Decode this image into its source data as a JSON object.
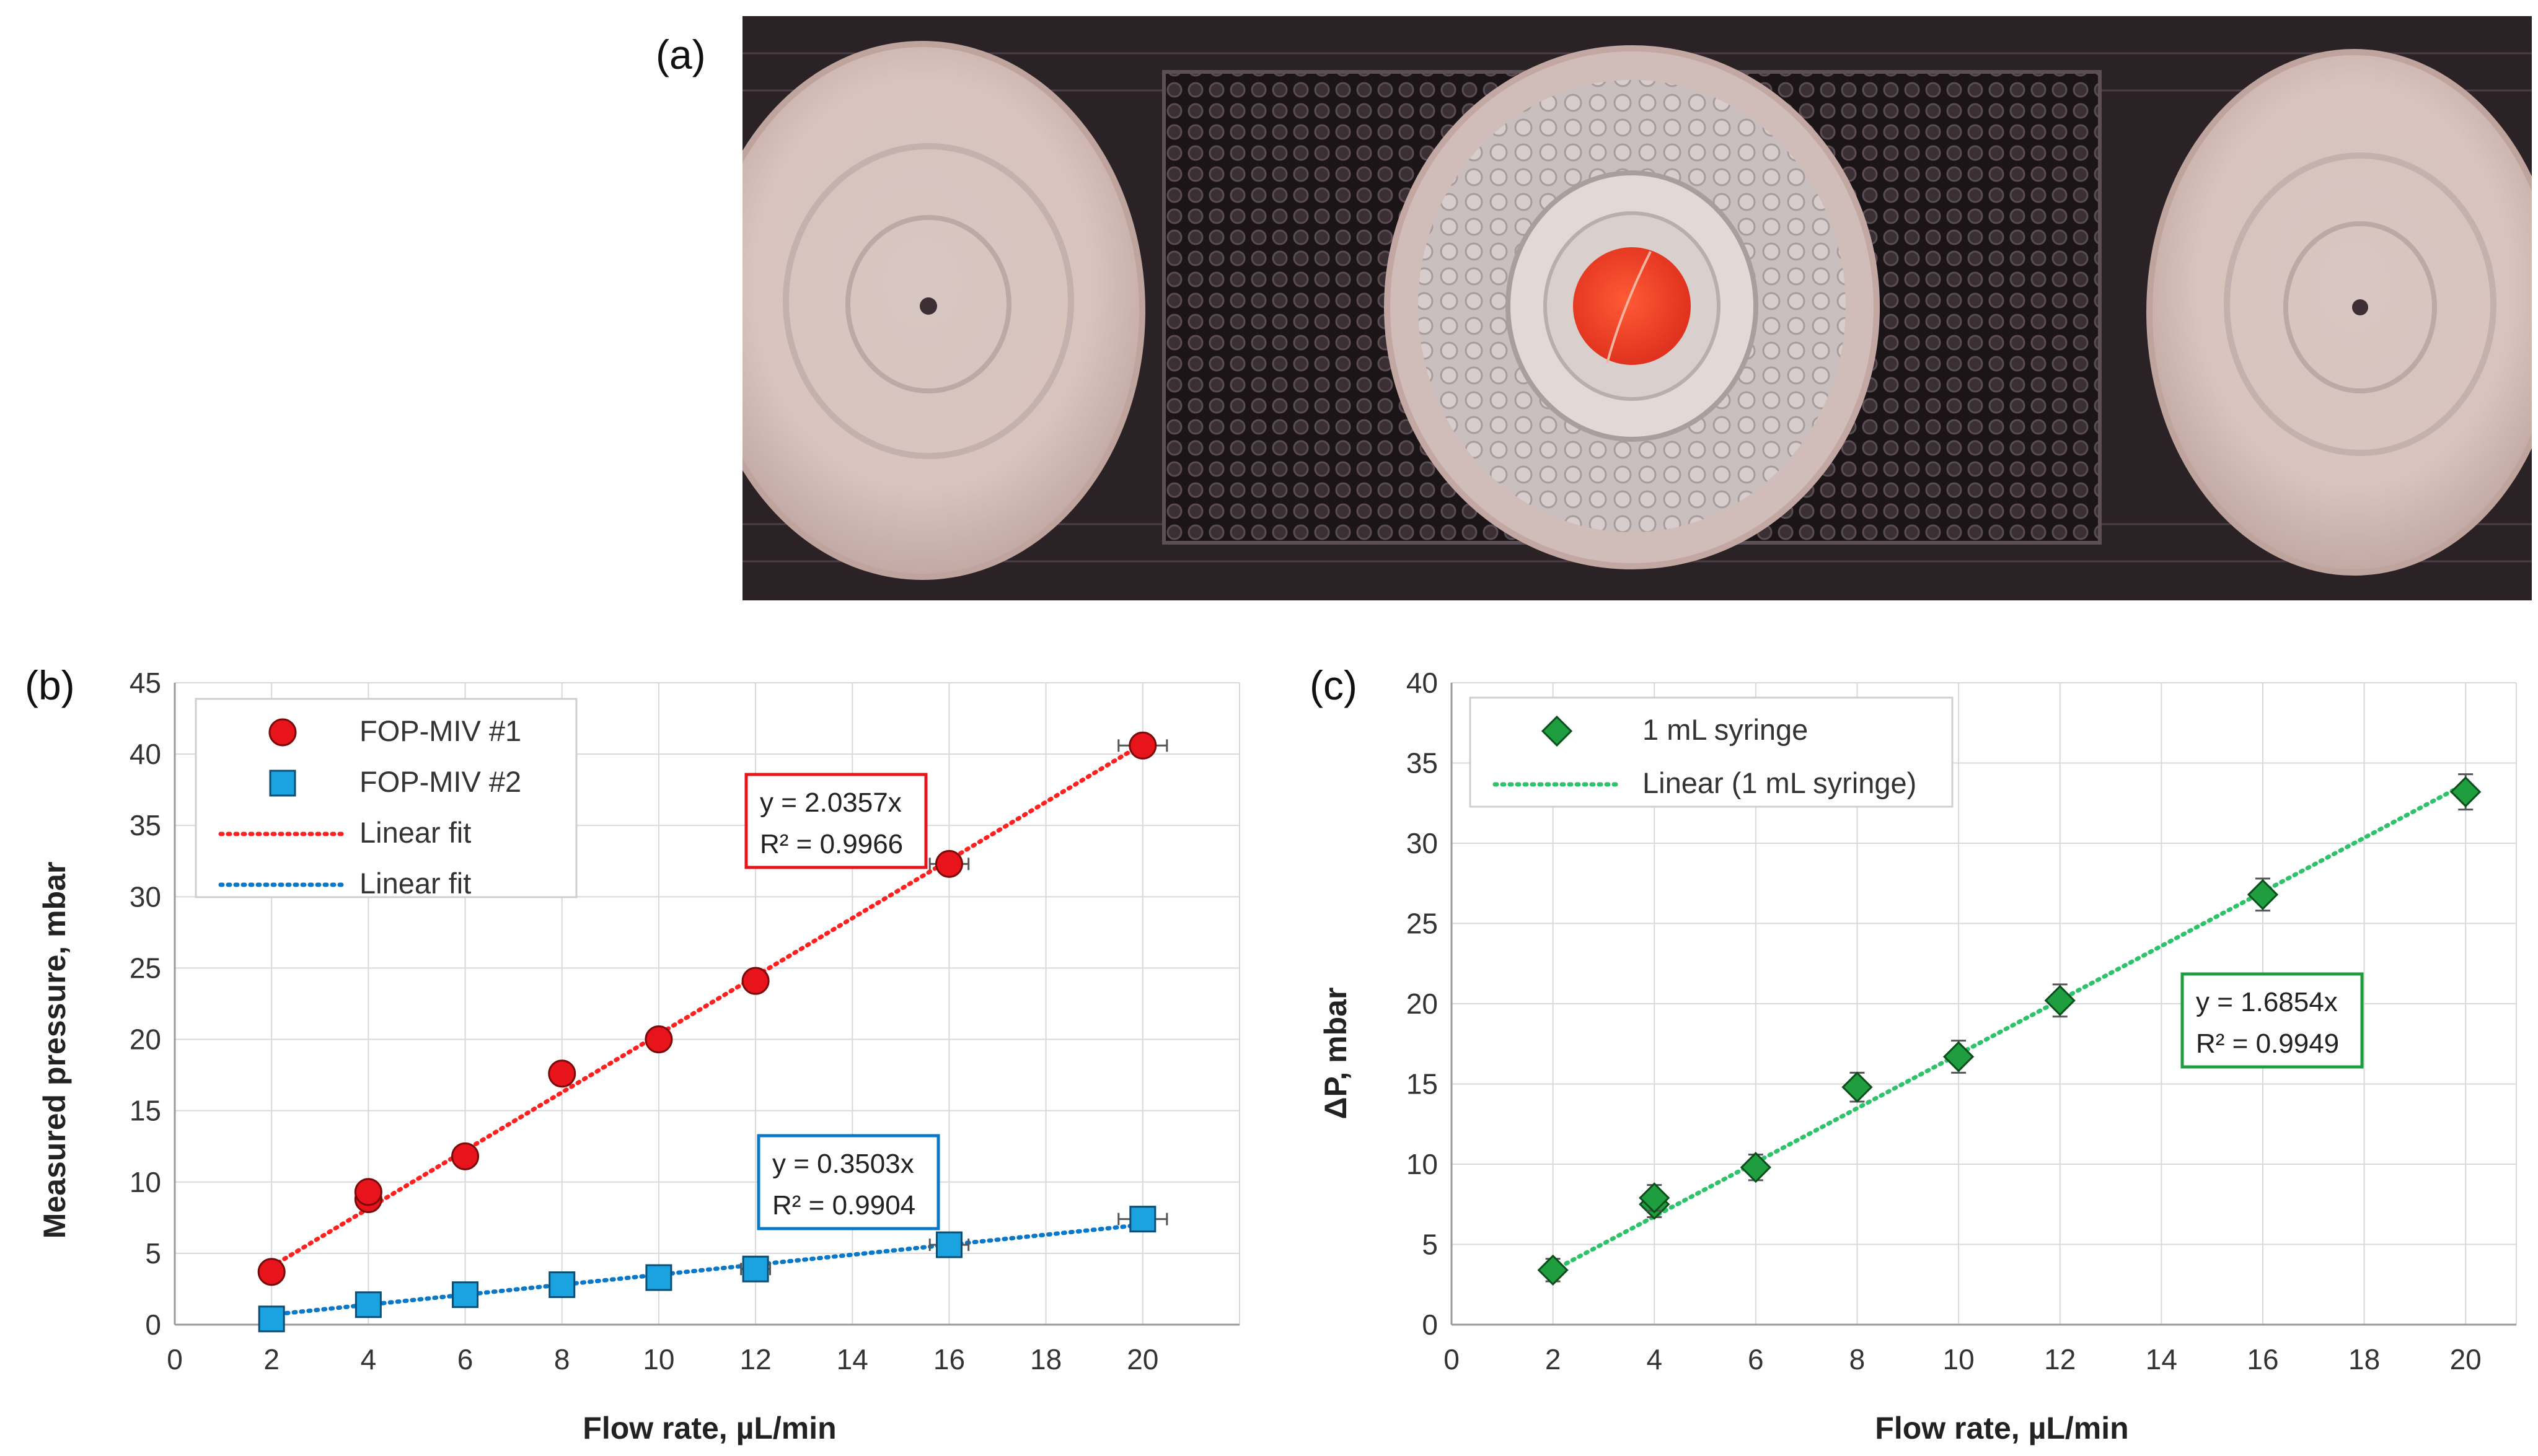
{
  "figure": {
    "panel_a_label": "(a)",
    "panel_b_label": "(b)",
    "panel_c_label": "(c)"
  },
  "colors": {
    "red": "#e8141c",
    "blue": "#1aa3e0",
    "green": "#1e9e3e",
    "fit_red": "#ff2020",
    "fit_blue": "#0a78c8",
    "fit_green": "#2ec26a",
    "grid": "#d9d9d9"
  },
  "chart_data": [
    {
      "id": "b",
      "type": "scatter",
      "title": "",
      "xlabel": "Flow rate, µL/min",
      "ylabel": "Measured pressure, mbar",
      "xlim": [
        0,
        22
      ],
      "ylim": [
        0,
        45
      ],
      "xticks": [
        0,
        2,
        4,
        6,
        8,
        10,
        12,
        14,
        16,
        18,
        20
      ],
      "yticks": [
        0,
        5,
        10,
        15,
        20,
        25,
        30,
        35,
        40,
        45
      ],
      "grid": true,
      "legend_position": "top-left",
      "series": [
        {
          "name": "FOP-MIV #1",
          "marker": "circle",
          "color": "#e8141c",
          "x": [
            2,
            4,
            4,
            6,
            8,
            10,
            12,
            16,
            20
          ],
          "y": [
            3.7,
            8.8,
            9.3,
            11.8,
            17.6,
            20.0,
            24.1,
            32.3,
            40.6
          ],
          "xerr": [
            0,
            0,
            0,
            0,
            0,
            0.2,
            0.2,
            0.4,
            0.5
          ]
        },
        {
          "name": "FOP-MIV #2",
          "marker": "square",
          "color": "#1aa3e0",
          "x": [
            2,
            4,
            6,
            8,
            10,
            12,
            16,
            20
          ],
          "y": [
            0.4,
            1.4,
            2.1,
            2.8,
            3.3,
            3.9,
            5.6,
            7.4
          ],
          "xerr": [
            0,
            0,
            0,
            0.2,
            0.2,
            0.3,
            0.4,
            0.5
          ]
        }
      ],
      "fits": [
        {
          "name": "Linear fit",
          "slope": 2.0357,
          "color": "#ff2020",
          "x_range": [
            2,
            20
          ],
          "equation": "y = 2.0357x",
          "r2": "R² = 0.9966"
        },
        {
          "name": "Linear fit",
          "slope": 0.3503,
          "color": "#0a78c8",
          "x_range": [
            2,
            20
          ],
          "equation": "y = 0.3503x",
          "r2": "R² = 0.9904"
        }
      ],
      "legend": [
        "FOP-MIV #1",
        "FOP-MIV #2",
        "Linear fit",
        "Linear fit"
      ]
    },
    {
      "id": "c",
      "type": "scatter",
      "title": "",
      "xlabel": "Flow rate, µL/min",
      "ylabel": "ΔP, mbar",
      "xlim": [
        0,
        21
      ],
      "ylim": [
        0,
        40
      ],
      "xticks": [
        0,
        2,
        4,
        6,
        8,
        10,
        12,
        14,
        16,
        18,
        20
      ],
      "yticks": [
        0,
        5,
        10,
        15,
        20,
        25,
        30,
        35,
        40
      ],
      "grid": true,
      "legend_position": "top-left",
      "series": [
        {
          "name": "1 mL syringe",
          "marker": "diamond",
          "color": "#1e9e3e",
          "x": [
            2,
            4,
            4,
            6,
            8,
            10,
            12,
            16,
            20
          ],
          "y": [
            3.4,
            7.5,
            7.9,
            9.8,
            14.8,
            16.7,
            20.2,
            26.8,
            33.2
          ],
          "yerr": [
            0.7,
            0.8,
            0.8,
            0.8,
            0.9,
            1.0,
            1.0,
            1.0,
            1.1
          ]
        }
      ],
      "fits": [
        {
          "name": "Linear (1 mL syringe)",
          "slope": 1.6854,
          "color": "#2ec26a",
          "x_range": [
            2,
            20
          ],
          "equation": "y = 1.6854x",
          "r2": "R² = 0.9949"
        }
      ],
      "legend": [
        "1 mL syringe",
        "Linear (1 mL syringe)"
      ]
    }
  ]
}
